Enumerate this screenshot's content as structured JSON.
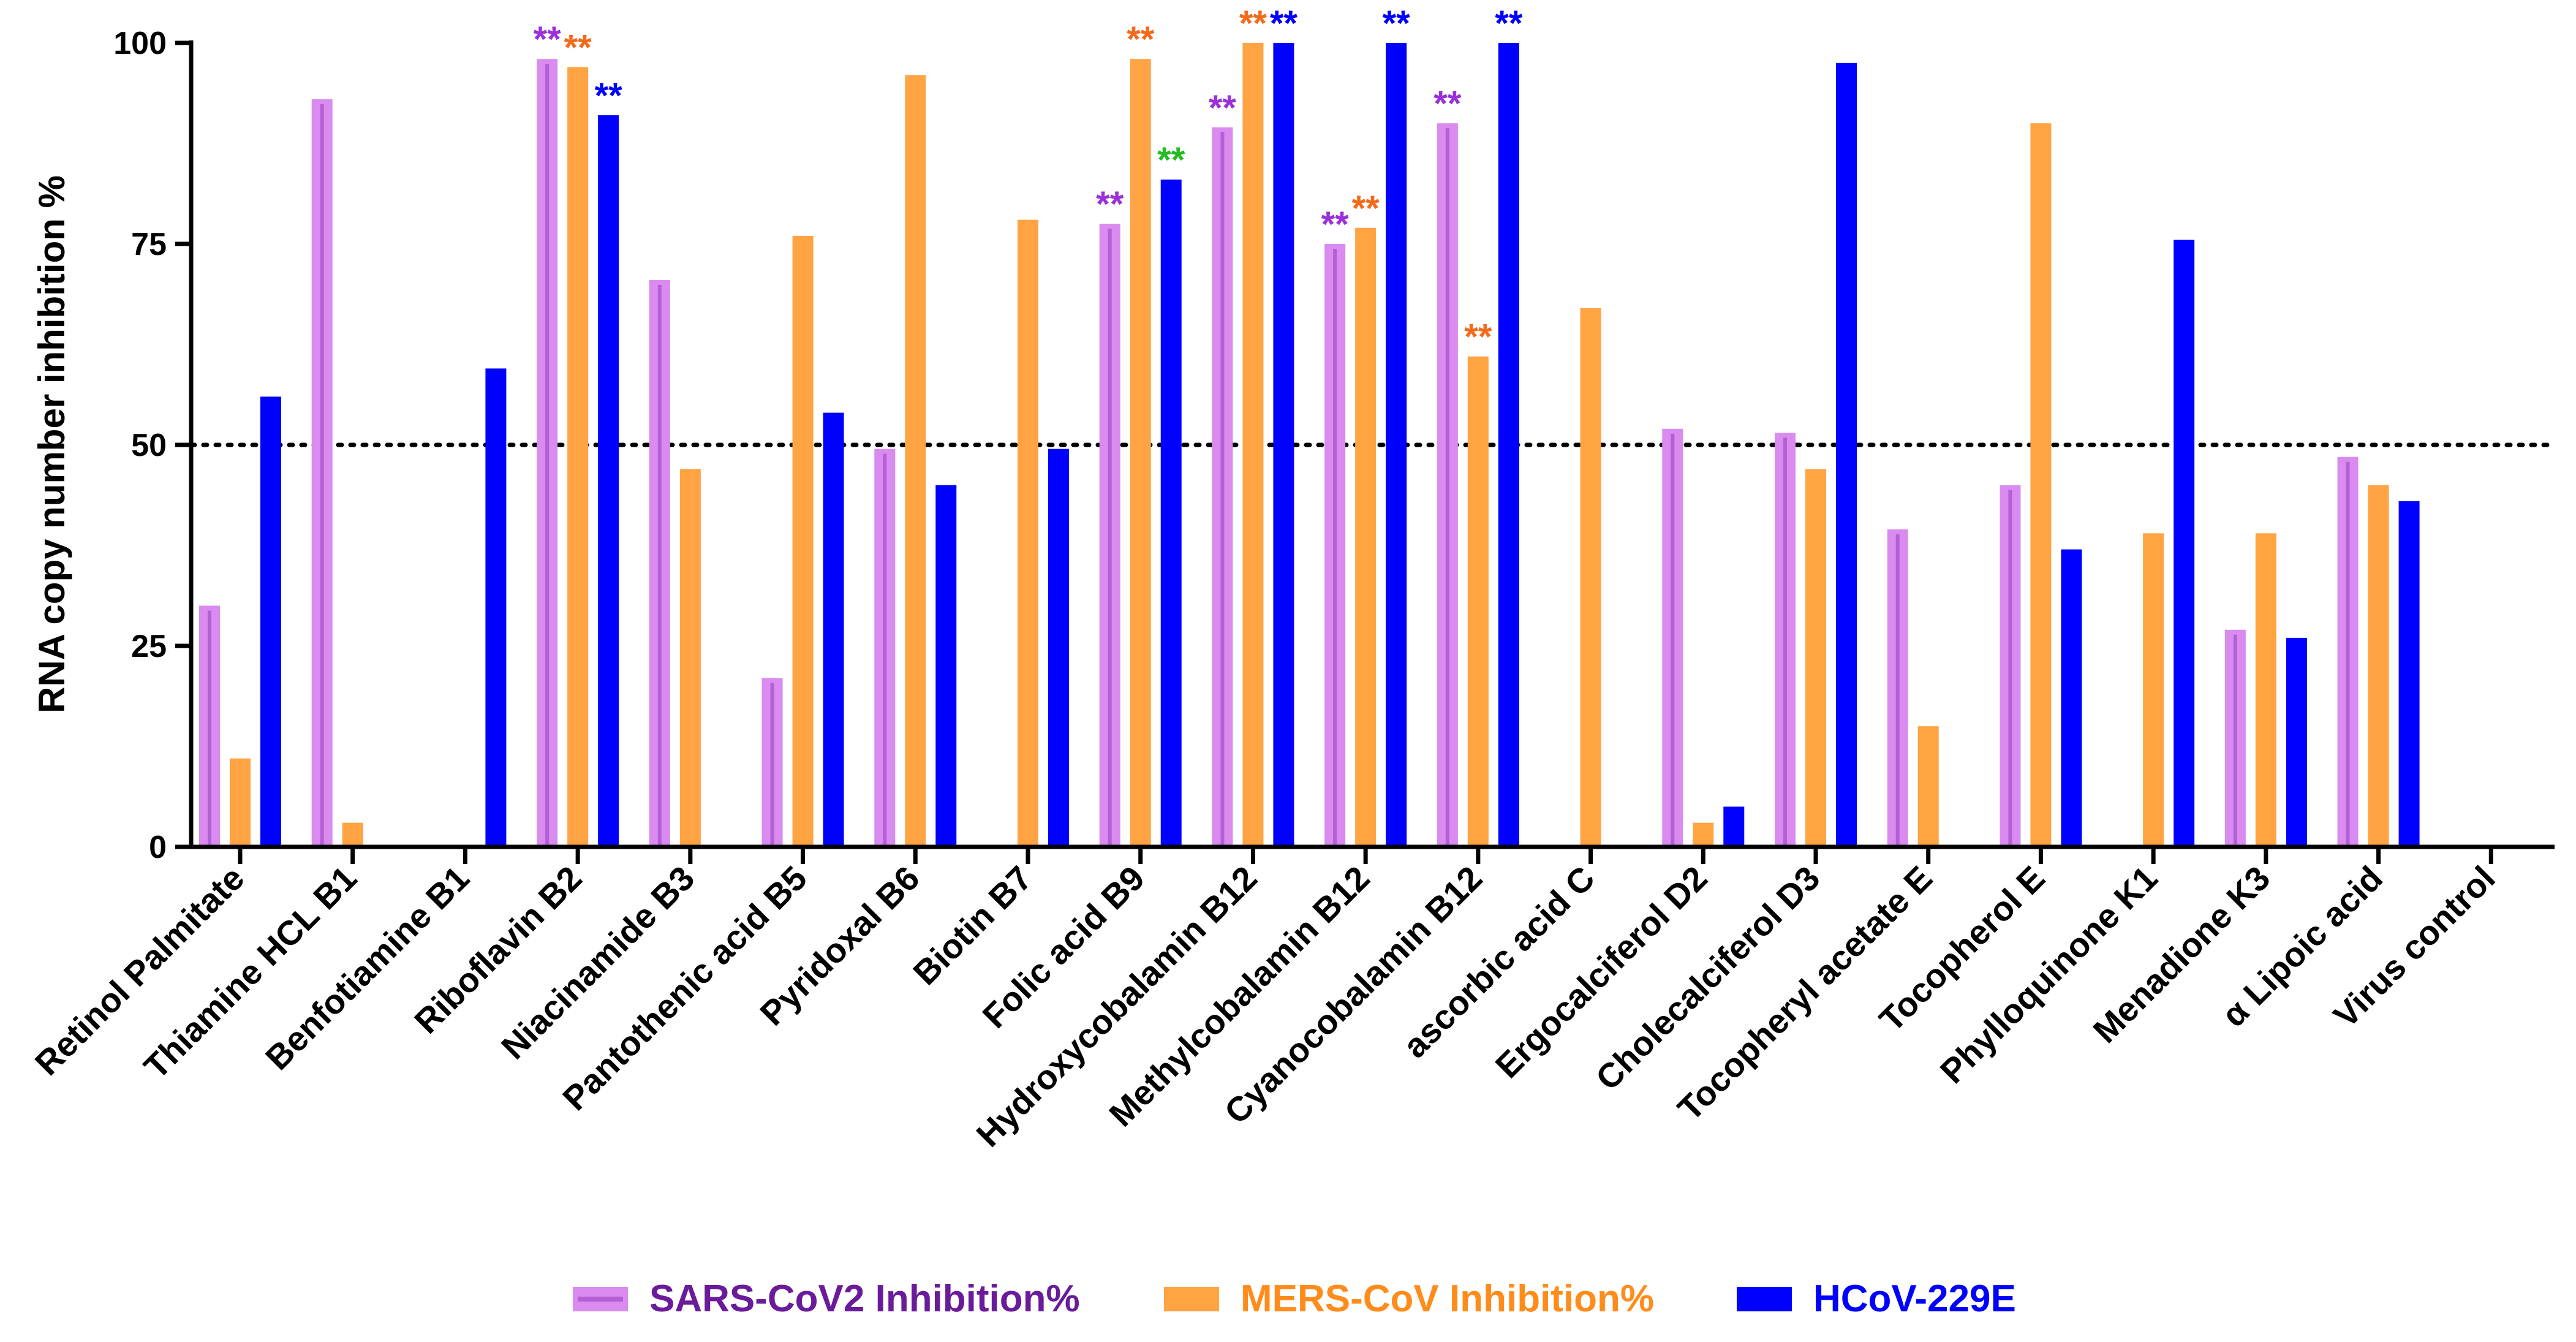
{
  "chart_data": {
    "type": "bar",
    "title": "",
    "xlabel": "",
    "ylabel": "RNA copy number inhibition %",
    "ylim": [
      0,
      100
    ],
    "yticks": [
      0,
      25,
      50,
      75,
      100
    ],
    "reference_line": 50,
    "categories": [
      "Retinol Palmitate",
      "Thiamine HCL B1",
      "Benfotiamine B1",
      "Riboflavin B2",
      "Niacinamide B3",
      "Pantothenic acid B5",
      "Pyridoxal B6",
      "Biotin B7",
      "Folic acid B9",
      "Hydroxycobalamin B12",
      "Methylcobalamin B12",
      "Cyanocobalamin B12",
      "ascorbic acid C",
      "Ergocalciferol D2",
      "Cholecalciferol D3",
      "Tocopheryl acetate E",
      "Tocopherol E",
      "Phylloquinone K1",
      "Menadione K3",
      "α Lipoic acid",
      "Virus control"
    ],
    "series": [
      {
        "name": "SARS-CoV2 Inhibition%",
        "color": "#d98bef",
        "inner_color": "#b35fd6",
        "label_color": "#6a1b9a",
        "values": [
          30,
          93,
          0,
          98,
          70.5,
          21,
          49.5,
          0,
          77.5,
          89.5,
          75,
          90,
          0,
          52,
          51.5,
          39.5,
          45,
          0,
          27,
          48.5,
          0
        ]
      },
      {
        "name": "MERS-CoV Inhibition%",
        "color": "#ffa343",
        "inner_color": "#ffa343",
        "label_color": "#ff8c1a",
        "values": [
          11,
          3,
          0,
          97,
          47,
          76,
          96,
          78,
          98,
          100,
          77,
          61,
          67,
          3,
          47,
          15,
          90,
          39,
          39,
          45,
          0
        ]
      },
      {
        "name": "HCoV-229E",
        "color": "#0000ff",
        "inner_color": "#0000ff",
        "label_color": "#0000ff",
        "values": [
          56,
          0,
          59.5,
          91,
          0,
          54,
          45,
          49.5,
          83,
          100,
          100,
          100,
          0,
          5,
          97.5,
          0,
          37,
          75.5,
          26,
          43,
          0
        ]
      }
    ],
    "annotations": [
      {
        "category_index": 3,
        "series": 0,
        "text": "**",
        "color": "#9b30d9"
      },
      {
        "category_index": 3,
        "series": 1,
        "text": "**",
        "color": "#f26b1d"
      },
      {
        "category_index": 3,
        "series": 2,
        "text": "**",
        "color": "#0000ff"
      },
      {
        "category_index": 8,
        "series": 0,
        "text": "**",
        "color": "#9b30d9"
      },
      {
        "category_index": 8,
        "series": 1,
        "text": "**",
        "color": "#f26b1d"
      },
      {
        "category_index": 8,
        "series": 2,
        "text": "**",
        "color": "#22bb22"
      },
      {
        "category_index": 9,
        "series": 0,
        "text": "**",
        "color": "#9b30d9"
      },
      {
        "category_index": 9,
        "series": 1,
        "text": "**",
        "color": "#f26b1d"
      },
      {
        "category_index": 9,
        "series": 2,
        "text": "**",
        "color": "#0000ff"
      },
      {
        "category_index": 10,
        "series": 0,
        "text": "**",
        "color": "#9b30d9"
      },
      {
        "category_index": 10,
        "series": 1,
        "text": "**",
        "color": "#f26b1d"
      },
      {
        "category_index": 10,
        "series": 2,
        "text": "**",
        "color": "#0000ff"
      },
      {
        "category_index": 11,
        "series": 0,
        "text": "**",
        "color": "#9b30d9"
      },
      {
        "category_index": 11,
        "series": 1,
        "text": "**",
        "color": "#f26b1d"
      },
      {
        "category_index": 11,
        "series": 2,
        "text": "**",
        "color": "#0000ff"
      }
    ],
    "legend_position": "bottom"
  }
}
